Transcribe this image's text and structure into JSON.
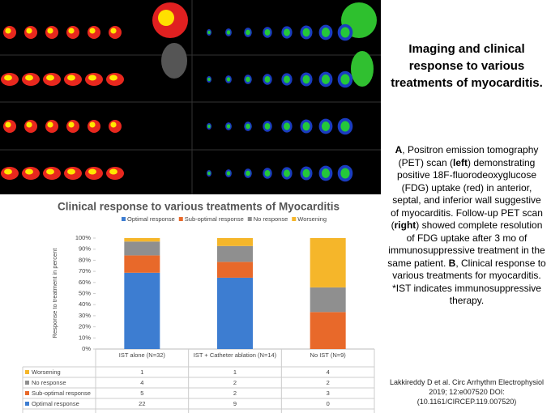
{
  "slide": {
    "title": "Imaging and clinical response to various treatments of myocarditis.",
    "body": [
      "A",
      ", Positron emission tomography (PET) scan (",
      "left",
      ") demonstrating positive 18F-fluorodeoxyglucose (FDG) uptake (red) in anterior, septal, and inferior wall suggestive of myocarditis. Follow-up PET scan (",
      "right",
      ") showed complete resolution of FDG uptake after 3 mo of immunosuppressive treatment in the same patient. ",
      "B",
      ", Clinical response to various treatments for myocarditis. *IST indicates immunosuppressive therapy."
    ],
    "citation": "Lakkireddy D et al. Circ Arrhythm Electrophysiol 2019; 12:e007520 DOI: (10.1161/CIRCEP.119.007520)"
  },
  "chart_data": {
    "type": "stacked_bar_100",
    "title": "Clinical response to various treatments of Myocarditis",
    "ylabel": "Response to treatment in percent",
    "categories": [
      "IST alone (N=32)",
      "IST + Catheter ablation (N=14)",
      "No IST (N=9)"
    ],
    "series": [
      {
        "name": "Optimal response",
        "color": "#3d7dd1",
        "values": [
          22,
          9,
          0
        ]
      },
      {
        "name": "Sub-optimal response",
        "color": "#e8692a",
        "values": [
          5,
          2,
          3
        ]
      },
      {
        "name": "No response",
        "color": "#8f8f8f",
        "values": [
          4,
          2,
          2
        ]
      },
      {
        "name": "Worsening",
        "color": "#f5b62a",
        "values": [
          1,
          1,
          4
        ]
      }
    ],
    "ylim": [
      0,
      100
    ],
    "yticks": [
      {
        "value": 0,
        "label": "0%"
      },
      {
        "value": 10,
        "label": "10%"
      },
      {
        "value": 20,
        "label": "20%"
      },
      {
        "value": 30,
        "label": "30%"
      },
      {
        "value": 40,
        "label": "40%"
      },
      {
        "value": 50,
        "label": "50%"
      },
      {
        "value": 60,
        "label": "60%"
      },
      {
        "value": 70,
        "label": "70%"
      },
      {
        "value": 80,
        "label": "80%"
      },
      {
        "value": 90,
        "label": "90%"
      },
      {
        "value": 100,
        "label": "100%"
      }
    ],
    "grid": false,
    "legend": "top"
  }
}
